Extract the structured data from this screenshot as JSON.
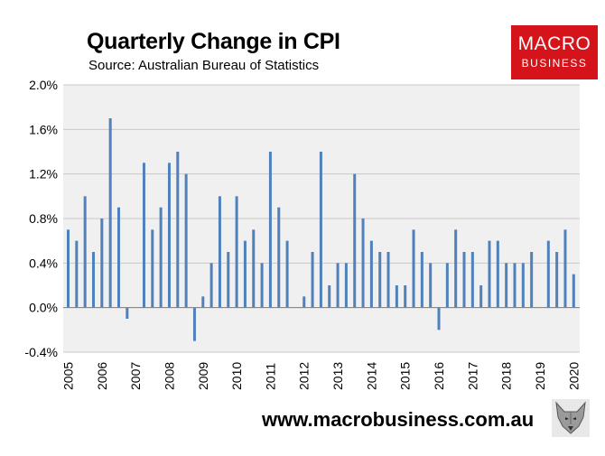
{
  "header": {
    "title": "Quarterly Change in CPI",
    "subtitle": "Source: Australian Bureau of Statistics"
  },
  "logo": {
    "line1": "MACRO",
    "line2": "BUSINESS",
    "bg_color": "#d4141a"
  },
  "footer": {
    "website": "www.macrobusiness.com.au",
    "mascot_icon": "wolf-icon"
  },
  "chart_data": {
    "type": "bar",
    "bar_color": "#4f81bd",
    "plot_bg": "#f0f0f0",
    "grid": true,
    "ylim": [
      -0.4,
      2.0
    ],
    "ytick_values": [
      -0.4,
      0.0,
      0.4,
      0.8,
      1.2,
      1.6,
      2.0
    ],
    "ytick_labels": [
      "-0.4%",
      "0.0%",
      "0.4%",
      "0.8%",
      "1.2%",
      "1.6%",
      "2.0%"
    ],
    "xtick_labels": [
      "2005",
      "2006",
      "2007",
      "2008",
      "2009",
      "2010",
      "2011",
      "2012",
      "2013",
      "2014",
      "2015",
      "2016",
      "2017",
      "2018",
      "2019",
      "2020"
    ],
    "xtick_category_index": [
      0,
      4,
      8,
      12,
      16,
      20,
      24,
      28,
      32,
      36,
      40,
      44,
      48,
      52,
      56,
      60
    ],
    "series": [
      {
        "values": [
          0.7,
          0.6,
          1.0,
          0.5,
          0.8,
          1.7,
          0.9,
          -0.1,
          0.0,
          1.3,
          0.7,
          0.9,
          1.3,
          1.4,
          1.2,
          -0.3,
          0.1,
          0.4,
          1.0,
          0.5,
          1.0,
          0.6,
          0.7,
          0.4,
          1.4,
          0.9,
          0.6,
          0.0,
          0.1,
          0.5,
          1.4,
          0.2,
          0.4,
          0.4,
          1.2,
          0.8,
          0.6,
          0.5,
          0.5,
          0.2,
          0.2,
          0.7,
          0.5,
          0.4,
          -0.2,
          0.4,
          0.7,
          0.5,
          0.5,
          0.2,
          0.6,
          0.6,
          0.4,
          0.4,
          0.4,
          0.5,
          0.0,
          0.6,
          0.5,
          0.7,
          0.3
        ]
      }
    ]
  }
}
